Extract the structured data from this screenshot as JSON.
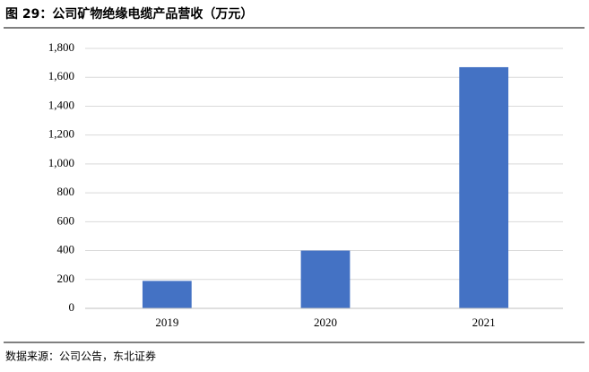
{
  "chart_data": {
    "type": "bar",
    "title": "图 29：公司矿物绝缘电缆产品营收（万元）",
    "categories": [
      "2019",
      "2020",
      "2021"
    ],
    "values": [
      190,
      400,
      1670
    ],
    "color": "#4472c4",
    "ylim": [
      0,
      1800
    ],
    "yticks": [
      0,
      200,
      400,
      600,
      800,
      {
        "value": 1000,
        "label": "1,000"
      },
      {
        "value": 1200,
        "label": "1,200"
      },
      {
        "value": 1400,
        "label": "1,400"
      },
      {
        "value": 1600,
        "label": "1,600"
      },
      {
        "value": 1800,
        "label": "1,800"
      }
    ],
    "grid": true,
    "source": "数据来源：公司公告，东北证券"
  }
}
